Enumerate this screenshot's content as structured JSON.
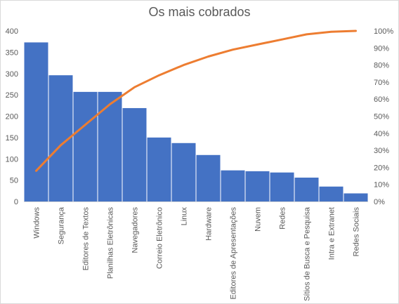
{
  "chart_data": {
    "type": "bar",
    "title": "Os mais cobrados",
    "categories": [
      "Windows",
      "Segurança",
      "Editores de Textos",
      "Planilhas Eletrônicas",
      "Navegadores",
      "Correio Eletrônico",
      "Linux",
      "Hardware",
      "Editores de Apresentações",
      "Nuvem",
      "Redes",
      "Sítios de Busca e Pesquisa",
      "Intra e Extranet",
      "Redes Sociais"
    ],
    "series": [
      {
        "type": "bar",
        "axis": "left",
        "color": "#4472c4",
        "values": [
          373,
          296,
          257,
          257,
          219,
          150,
          137,
          109,
          73,
          71,
          68,
          56,
          35,
          19
        ]
      },
      {
        "type": "line",
        "axis": "right",
        "color": "#ed7d31",
        "values": [
          18,
          33,
          45,
          57,
          67,
          74,
          80,
          85,
          89,
          92,
          95,
          98,
          99.5,
          100
        ]
      }
    ],
    "ylim": [
      0,
      400
    ],
    "yticks": [
      "0",
      "50",
      "100",
      "150",
      "200",
      "250",
      "300",
      "350",
      "400"
    ],
    "y2lim": [
      0,
      100
    ],
    "y2ticks": [
      "0%",
      "10%",
      "20%",
      "30%",
      "40%",
      "50%",
      "60%",
      "70%",
      "80%",
      "90%",
      "100%"
    ],
    "grid": false,
    "legend": "none"
  }
}
